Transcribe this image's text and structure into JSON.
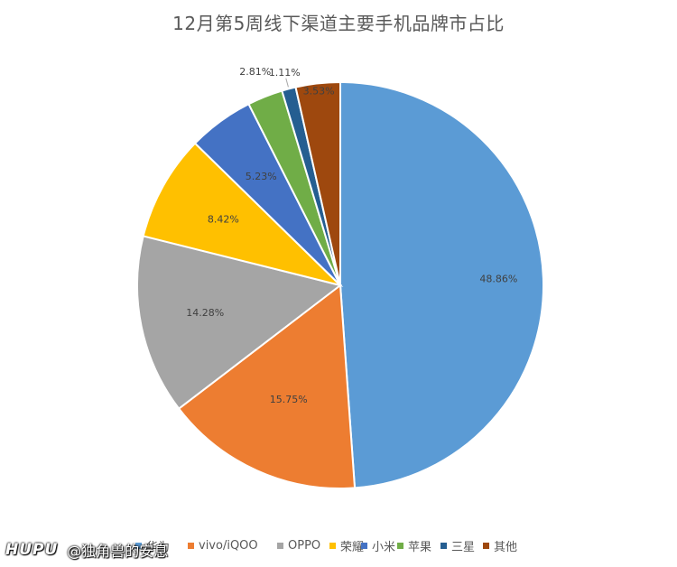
{
  "chart_data": {
    "type": "pie",
    "title": "12月第5周线下渠道主要手机品牌市占比",
    "categories": [
      "华为",
      "vivo/iQOO",
      "OPPO",
      "荣耀",
      "小米",
      "苹果",
      "三星",
      "其他"
    ],
    "values": [
      48.86,
      15.75,
      14.28,
      8.42,
      5.23,
      2.81,
      1.11,
      3.53
    ],
    "value_labels": [
      "48.86%",
      "15.75%",
      "14.28%",
      "8.42%",
      "5.23%",
      "2.81%",
      "1.11%",
      "3.53%"
    ],
    "colors": [
      "#5b9bd5",
      "#ed7d31",
      "#a5a5a5",
      "#ffc000",
      "#4472c4",
      "#70ad47",
      "#255e91",
      "#9e480e"
    ],
    "start_angle_deg": 0,
    "direction": "clockwise",
    "legend_position": "bottom"
  },
  "watermark": {
    "logo": "HUPU",
    "handle": "@独角兽的安息"
  }
}
